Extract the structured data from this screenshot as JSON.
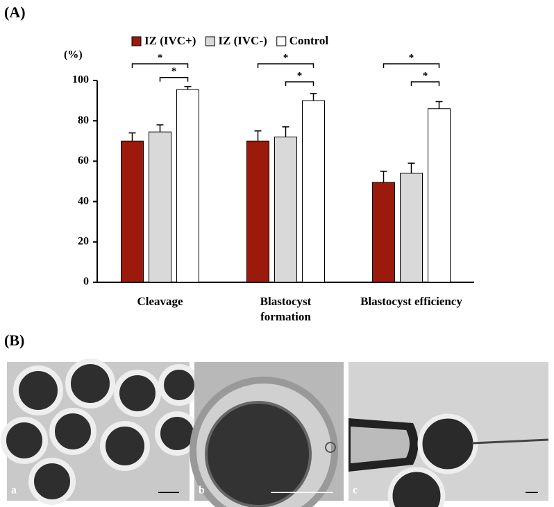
{
  "chart_data": {
    "type": "bar",
    "panel_label": "(A)",
    "y_label": "(%)",
    "categories": [
      "Cleavage",
      "Blastocyst\nformation",
      "Blastocyst efficiency"
    ],
    "series": [
      {
        "name": "IZ (IVC+)",
        "color": "#9b1a0c",
        "values": [
          70,
          70,
          49.5
        ],
        "errors": [
          4,
          5,
          5.5
        ]
      },
      {
        "name": "IZ (IVC-)",
        "color": "#d9d9d9",
        "values": [
          74.5,
          72,
          54
        ],
        "errors": [
          3.5,
          5,
          5
        ]
      },
      {
        "name": "Control",
        "color": "#ffffff",
        "values": [
          95.5,
          90,
          86
        ],
        "errors": [
          1.5,
          3.5,
          3.5
        ]
      }
    ],
    "ylim": [
      0,
      100
    ],
    "yticks": [
      0,
      20,
      40,
      60,
      80,
      100
    ],
    "annotations": [
      "*",
      "*",
      "*",
      "*",
      "*",
      "*"
    ],
    "legend": "top"
  },
  "panel_b": {
    "label": "(B)",
    "images": [
      "a",
      "b",
      "c"
    ]
  }
}
